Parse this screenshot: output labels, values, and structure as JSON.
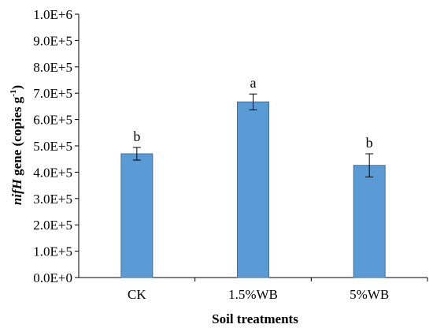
{
  "chart_data": {
    "type": "bar",
    "categories": [
      "CK",
      "1.5%WB",
      "5%WB"
    ],
    "values": [
      470000,
      667000,
      426000
    ],
    "errors": [
      24000,
      30000,
      44000
    ],
    "significance_letters": [
      "b",
      "a",
      "b"
    ],
    "xlabel": "Soil treatments",
    "ylabel": {
      "italic": "nifH",
      "normal": " gene (copies g",
      "sup": "-1",
      "end": ")"
    },
    "ylim": [
      0,
      1000000
    ],
    "yticks": [
      0,
      100000,
      200000,
      300000,
      400000,
      500000,
      600000,
      700000,
      800000,
      900000,
      1000000
    ],
    "ytick_labels": [
      "0.0E+0",
      "1.0E+5",
      "2.0E+5",
      "3.0E+5",
      "4.0E+5",
      "5.0E+5",
      "6.0E+5",
      "7.0E+5",
      "8.0E+5",
      "9.0E+5",
      "1.0E+6"
    ],
    "grid": false,
    "colors": {
      "bar_fill": "#5b9bd5",
      "bar_edge": "#41719c",
      "axis": "#000000"
    }
  }
}
